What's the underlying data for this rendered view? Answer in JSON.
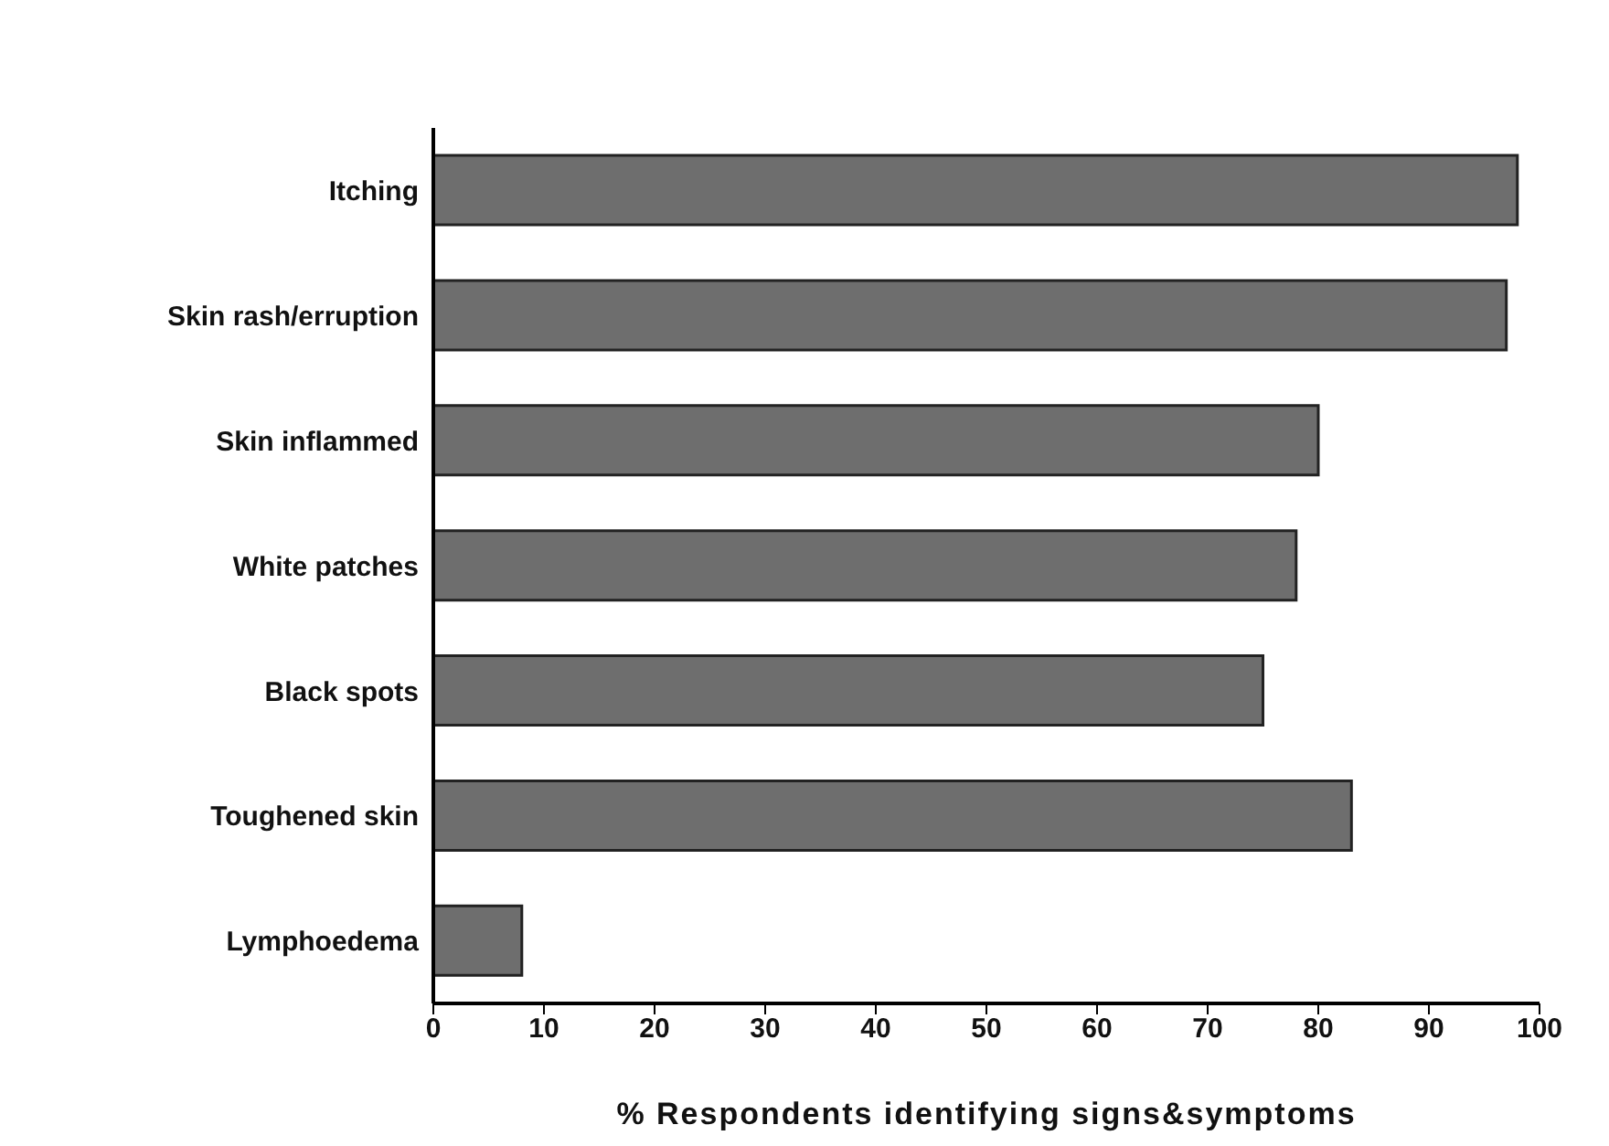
{
  "chart_data": {
    "type": "bar",
    "orientation": "horizontal",
    "xlabel": "% Respondents identifying signs&symptoms",
    "categories": [
      "Itching",
      "Skin rash/erruption",
      "Skin inflammed",
      "White patches",
      "Black spots",
      "Toughened skin",
      "Lymphoedema"
    ],
    "values": [
      98,
      97,
      80,
      78,
      75,
      83,
      8
    ],
    "color": "#6e6e6e",
    "xlim": [
      0,
      100
    ],
    "xticks": [
      0,
      10,
      20,
      30,
      40,
      50,
      60,
      70,
      80,
      90,
      100
    ],
    "grid": false,
    "legend": false
  }
}
